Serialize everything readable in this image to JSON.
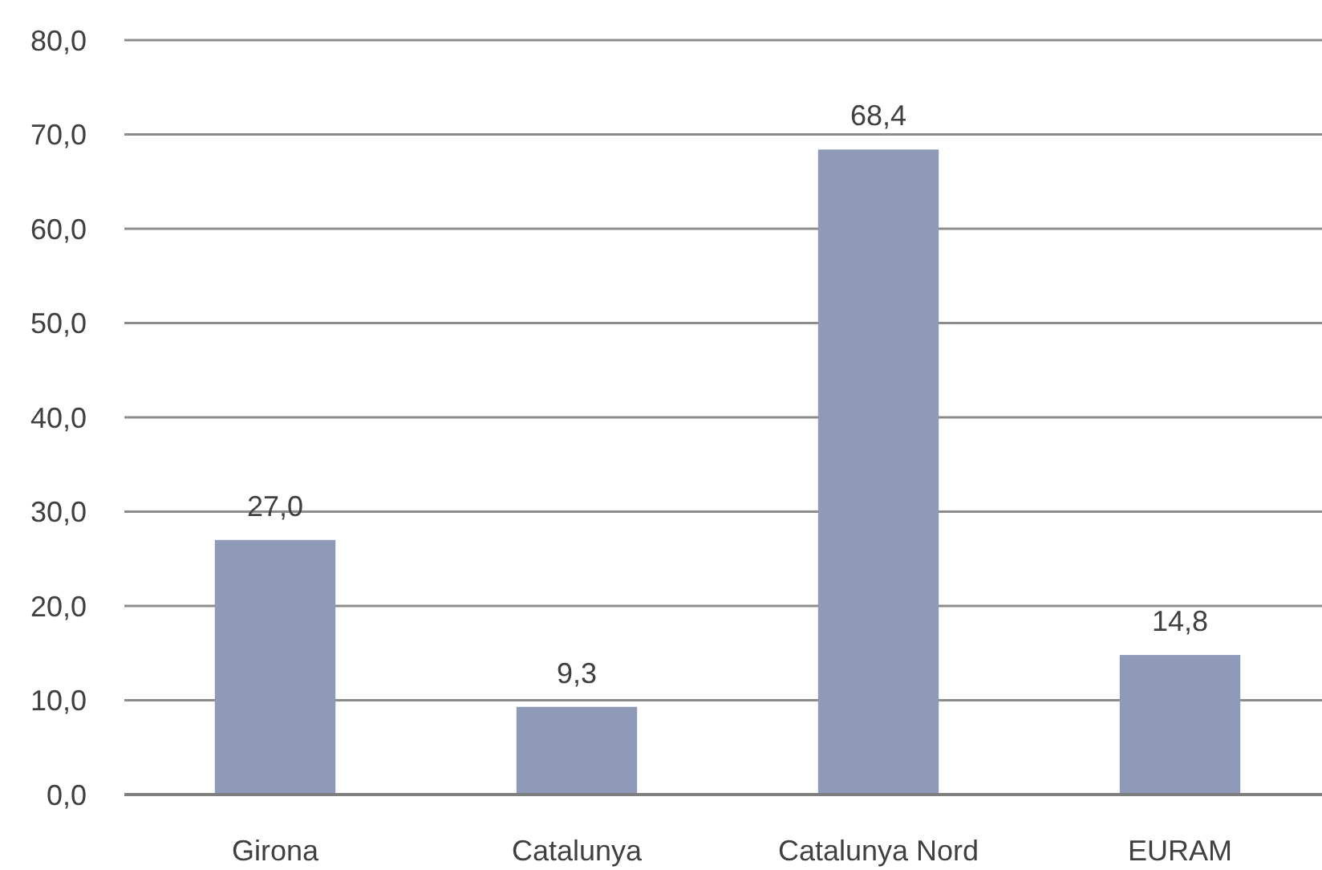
{
  "chart_data": {
    "type": "bar",
    "categories": [
      "Girona",
      "Catalunya",
      "Catalunya Nord",
      "EURAM"
    ],
    "values": [
      27.0,
      9.3,
      68.4,
      14.8
    ],
    "value_labels": [
      "27,0",
      "9,3",
      "68,4",
      "14,8"
    ],
    "color": "#8e9ab7",
    "ylim": [
      0,
      80
    ],
    "yticks": [
      {
        "value": 0,
        "label": "0,0"
      },
      {
        "value": 10,
        "label": "10,0"
      },
      {
        "value": 20,
        "label": "20,0"
      },
      {
        "value": 30,
        "label": "30,0"
      },
      {
        "value": 40,
        "label": "40,0"
      },
      {
        "value": 50,
        "label": "50,0"
      },
      {
        "value": 60,
        "label": "60,0"
      },
      {
        "value": 70,
        "label": "70,0"
      },
      {
        "value": 80,
        "label": "80,0"
      }
    ],
    "grid": "y"
  }
}
